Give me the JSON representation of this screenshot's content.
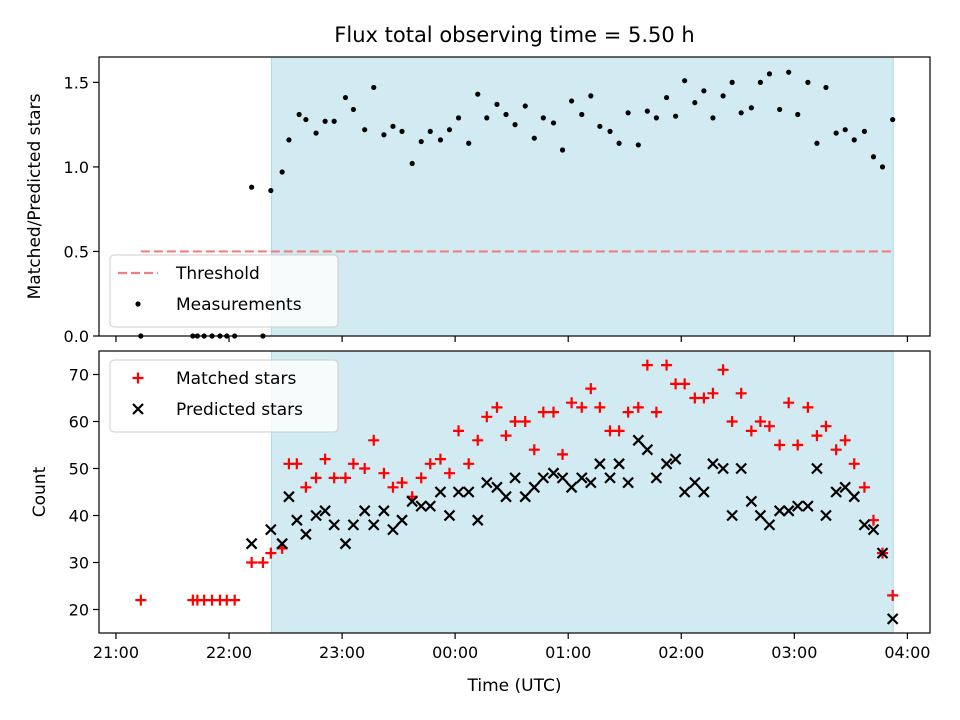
{
  "chart_data": [
    {
      "type": "scatter",
      "title": "Flux total observing time = 5.50 h",
      "xlabel": "",
      "ylabel": "Matched/Predicted stars",
      "x_unit": "hours since 21:00 UTC",
      "xlim": [
        20.85,
        28.2
      ],
      "ylim": [
        0,
        1.65
      ],
      "x_tick_labels": [
        "21:00",
        "22:00",
        "23:00",
        "00:00",
        "01:00",
        "02:00",
        "03:00",
        "04:00"
      ],
      "y_ticks": [
        0.0,
        0.5,
        1.0,
        1.5
      ],
      "y_tick_labels": [
        "0.0",
        "0.5",
        "1.0",
        "1.5"
      ],
      "shaded_span": [
        22.375,
        27.875
      ],
      "shade_color": "#add8e6",
      "legend_position": "lower-left",
      "series": [
        {
          "name": "Threshold",
          "kind": "hline",
          "y": 0.5,
          "x_range": [
            21.22,
            27.875
          ],
          "color": "#f08080"
        },
        {
          "name": "Measurements",
          "kind": "dots",
          "color": "#000000",
          "points": [
            [
              21.22,
              0.0
            ],
            [
              21.68,
              0.0
            ],
            [
              21.72,
              0.0
            ],
            [
              21.78,
              0.0
            ],
            [
              21.85,
              0.0
            ],
            [
              21.92,
              0.0
            ],
            [
              21.98,
              0.0
            ],
            [
              22.05,
              0.0
            ],
            [
              22.2,
              0.88
            ],
            [
              22.3,
              0.0
            ],
            [
              22.37,
              0.86
            ],
            [
              22.47,
              0.97
            ],
            [
              22.53,
              1.16
            ],
            [
              22.62,
              1.31
            ],
            [
              22.68,
              1.28
            ],
            [
              22.77,
              1.2
            ],
            [
              22.85,
              1.27
            ],
            [
              22.93,
              1.27
            ],
            [
              23.03,
              1.41
            ],
            [
              23.1,
              1.34
            ],
            [
              23.2,
              1.22
            ],
            [
              23.28,
              1.47
            ],
            [
              23.37,
              1.19
            ],
            [
              23.45,
              1.24
            ],
            [
              23.53,
              1.21
            ],
            [
              23.62,
              1.02
            ],
            [
              23.7,
              1.15
            ],
            [
              23.78,
              1.21
            ],
            [
              23.87,
              1.16
            ],
            [
              23.95,
              1.22
            ],
            [
              24.03,
              1.29
            ],
            [
              24.12,
              1.14
            ],
            [
              24.2,
              1.43
            ],
            [
              24.28,
              1.29
            ],
            [
              24.37,
              1.37
            ],
            [
              24.45,
              1.31
            ],
            [
              24.53,
              1.25
            ],
            [
              24.62,
              1.36
            ],
            [
              24.7,
              1.17
            ],
            [
              24.78,
              1.29
            ],
            [
              24.87,
              1.26
            ],
            [
              24.95,
              1.1
            ],
            [
              25.03,
              1.39
            ],
            [
              25.12,
              1.31
            ],
            [
              25.2,
              1.42
            ],
            [
              25.28,
              1.24
            ],
            [
              25.37,
              1.21
            ],
            [
              25.45,
              1.14
            ],
            [
              25.53,
              1.32
            ],
            [
              25.62,
              1.13
            ],
            [
              25.7,
              1.33
            ],
            [
              25.78,
              1.29
            ],
            [
              25.87,
              1.41
            ],
            [
              25.95,
              1.3
            ],
            [
              26.03,
              1.51
            ],
            [
              26.12,
              1.38
            ],
            [
              26.2,
              1.45
            ],
            [
              26.28,
              1.29
            ],
            [
              26.37,
              1.42
            ],
            [
              26.45,
              1.5
            ],
            [
              26.53,
              1.32
            ],
            [
              26.62,
              1.35
            ],
            [
              26.7,
              1.5
            ],
            [
              26.78,
              1.55
            ],
            [
              26.87,
              1.34
            ],
            [
              26.95,
              1.56
            ],
            [
              27.03,
              1.31
            ],
            [
              27.12,
              1.5
            ],
            [
              27.2,
              1.14
            ],
            [
              27.28,
              1.47
            ],
            [
              27.37,
              1.2
            ],
            [
              27.45,
              1.22
            ],
            [
              27.53,
              1.16
            ],
            [
              27.62,
              1.21
            ],
            [
              27.7,
              1.06
            ],
            [
              27.78,
              1.0
            ],
            [
              27.87,
              1.28
            ]
          ]
        }
      ]
    },
    {
      "type": "scatter",
      "title": "",
      "xlabel": "Time (UTC)",
      "ylabel": "Count",
      "x_unit": "hours since 21:00 UTC",
      "xlim": [
        20.85,
        28.2
      ],
      "ylim": [
        15,
        75
      ],
      "x_tick_labels": [
        "21:00",
        "22:00",
        "23:00",
        "00:00",
        "01:00",
        "02:00",
        "03:00",
        "04:00"
      ],
      "y_ticks": [
        20,
        30,
        40,
        50,
        60,
        70
      ],
      "y_tick_labels": [
        "20",
        "30",
        "40",
        "50",
        "60",
        "70"
      ],
      "shaded_span": [
        22.375,
        27.875
      ],
      "shade_color": "#add8e6",
      "legend_position": "upper-left",
      "series": [
        {
          "name": "Matched stars",
          "marker": "+",
          "color": "#ff0000",
          "points": [
            [
              21.22,
              22
            ],
            [
              21.68,
              22
            ],
            [
              21.72,
              22
            ],
            [
              21.78,
              22
            ],
            [
              21.85,
              22
            ],
            [
              21.92,
              22
            ],
            [
              21.98,
              22
            ],
            [
              22.05,
              22
            ],
            [
              22.2,
              30
            ],
            [
              22.3,
              30
            ],
            [
              22.37,
              32
            ],
            [
              22.47,
              33
            ],
            [
              22.53,
              51
            ],
            [
              22.6,
              51
            ],
            [
              22.68,
              46
            ],
            [
              22.77,
              48
            ],
            [
              22.85,
              52
            ],
            [
              22.93,
              48
            ],
            [
              23.03,
              48
            ],
            [
              23.1,
              51
            ],
            [
              23.2,
              50
            ],
            [
              23.28,
              56
            ],
            [
              23.37,
              49
            ],
            [
              23.45,
              46
            ],
            [
              23.53,
              47
            ],
            [
              23.62,
              44
            ],
            [
              23.7,
              48
            ],
            [
              23.78,
              51
            ],
            [
              23.87,
              52
            ],
            [
              23.95,
              49
            ],
            [
              24.03,
              58
            ],
            [
              24.12,
              51
            ],
            [
              24.2,
              56
            ],
            [
              24.28,
              61
            ],
            [
              24.37,
              63
            ],
            [
              24.45,
              57
            ],
            [
              24.53,
              60
            ],
            [
              24.62,
              60
            ],
            [
              24.7,
              54
            ],
            [
              24.78,
              62
            ],
            [
              24.87,
              62
            ],
            [
              24.95,
              53
            ],
            [
              25.03,
              64
            ],
            [
              25.12,
              63
            ],
            [
              25.2,
              67
            ],
            [
              25.28,
              63
            ],
            [
              25.37,
              58
            ],
            [
              25.45,
              58
            ],
            [
              25.53,
              62
            ],
            [
              25.62,
              63
            ],
            [
              25.7,
              72
            ],
            [
              25.78,
              62
            ],
            [
              25.87,
              72
            ],
            [
              25.95,
              68
            ],
            [
              26.03,
              68
            ],
            [
              26.12,
              65
            ],
            [
              26.2,
              65
            ],
            [
              26.28,
              66
            ],
            [
              26.37,
              71
            ],
            [
              26.45,
              60
            ],
            [
              26.53,
              66
            ],
            [
              26.62,
              58
            ],
            [
              26.7,
              60
            ],
            [
              26.78,
              59
            ],
            [
              26.87,
              55
            ],
            [
              26.95,
              64
            ],
            [
              27.03,
              55
            ],
            [
              27.12,
              63
            ],
            [
              27.2,
              57
            ],
            [
              27.28,
              59
            ],
            [
              27.37,
              54
            ],
            [
              27.45,
              56
            ],
            [
              27.53,
              51
            ],
            [
              27.62,
              46
            ],
            [
              27.7,
              39
            ],
            [
              27.78,
              32
            ],
            [
              27.87,
              23
            ]
          ]
        },
        {
          "name": "Predicted stars",
          "marker": "x",
          "color": "#000000",
          "points": [
            [
              22.2,
              34
            ],
            [
              22.37,
              37
            ],
            [
              22.47,
              34
            ],
            [
              22.53,
              44
            ],
            [
              22.6,
              39
            ],
            [
              22.68,
              36
            ],
            [
              22.77,
              40
            ],
            [
              22.85,
              41
            ],
            [
              22.93,
              38
            ],
            [
              23.03,
              34
            ],
            [
              23.1,
              38
            ],
            [
              23.2,
              41
            ],
            [
              23.28,
              38
            ],
            [
              23.37,
              41
            ],
            [
              23.45,
              37
            ],
            [
              23.53,
              39
            ],
            [
              23.62,
              43
            ],
            [
              23.7,
              42
            ],
            [
              23.78,
              42
            ],
            [
              23.87,
              45
            ],
            [
              23.95,
              40
            ],
            [
              24.03,
              45
            ],
            [
              24.12,
              45
            ],
            [
              24.2,
              39
            ],
            [
              24.28,
              47
            ],
            [
              24.37,
              46
            ],
            [
              24.45,
              44
            ],
            [
              24.53,
              48
            ],
            [
              24.62,
              44
            ],
            [
              24.7,
              46
            ],
            [
              24.78,
              48
            ],
            [
              24.87,
              49
            ],
            [
              24.95,
              48
            ],
            [
              25.03,
              46
            ],
            [
              25.12,
              48
            ],
            [
              25.2,
              47
            ],
            [
              25.28,
              51
            ],
            [
              25.37,
              48
            ],
            [
              25.45,
              51
            ],
            [
              25.53,
              47
            ],
            [
              25.62,
              56
            ],
            [
              25.7,
              54
            ],
            [
              25.78,
              48
            ],
            [
              25.87,
              51
            ],
            [
              25.95,
              52
            ],
            [
              26.03,
              45
            ],
            [
              26.12,
              47
            ],
            [
              26.2,
              45
            ],
            [
              26.28,
              51
            ],
            [
              26.37,
              50
            ],
            [
              26.45,
              40
            ],
            [
              26.53,
              50
            ],
            [
              26.62,
              43
            ],
            [
              26.7,
              40
            ],
            [
              26.78,
              38
            ],
            [
              26.87,
              41
            ],
            [
              26.95,
              41
            ],
            [
              27.03,
              42
            ],
            [
              27.12,
              42
            ],
            [
              27.2,
              50
            ],
            [
              27.28,
              40
            ],
            [
              27.37,
              45
            ],
            [
              27.45,
              46
            ],
            [
              27.53,
              44
            ],
            [
              27.62,
              38
            ],
            [
              27.7,
              37
            ],
            [
              27.78,
              32
            ],
            [
              27.87,
              18
            ]
          ]
        }
      ]
    }
  ]
}
